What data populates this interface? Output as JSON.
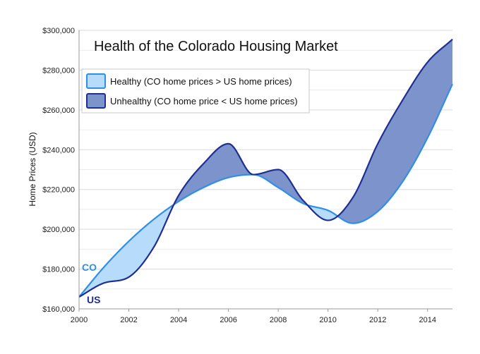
{
  "chart_data": {
    "type": "area",
    "title": "Health of the Colorado Housing Market",
    "xlabel": "",
    "ylabel": "Home Prices (USD)",
    "xlim": [
      2000,
      2015
    ],
    "ylim": [
      160000,
      300000
    ],
    "x_ticks": [
      2000,
      2002,
      2004,
      2006,
      2008,
      2010,
      2012,
      2014
    ],
    "x_tick_labels": [
      "2000",
      "2002",
      "2004",
      "2006",
      "2008",
      "2010",
      "2012",
      "2014"
    ],
    "y_ticks": [
      160000,
      180000,
      200000,
      220000,
      240000,
      260000,
      280000,
      300000
    ],
    "y_tick_labels": [
      "$160,000",
      "$180,000",
      "$200,000",
      "$220,000",
      "$240,000",
      "$260,000",
      "$280,000",
      "$300,000"
    ],
    "grid": "horizontal",
    "x": [
      2000,
      2001,
      2002,
      2003,
      2004,
      2005,
      2006,
      2007,
      2008,
      2009,
      2010,
      2011,
      2012,
      2013,
      2014,
      2015
    ],
    "series": [
      {
        "name": "CO",
        "color": "#2f8fe8",
        "values": [
          166000,
          181000,
          194000,
          205000,
          214000,
          221000,
          226000,
          227500,
          221000,
          213000,
          209500,
          203000,
          209000,
          224000,
          246000,
          273000
        ]
      },
      {
        "name": "US",
        "color": "#1f2f8f",
        "values": [
          166000,
          173000,
          176000,
          191000,
          217000,
          233000,
          243000,
          227500,
          230000,
          214500,
          204500,
          216000,
          243000,
          265000,
          284000,
          295500
        ]
      }
    ],
    "legend": {
      "placement": "top-left",
      "entries": [
        {
          "label": "Healthy (CO home prices > US home prices)",
          "fill": "#b7dcfb",
          "stroke": "#2f8fe8"
        },
        {
          "label": "Unhealthy (CO home price < US home prices)",
          "fill": "#7d93cc",
          "stroke": "#1f2f8f"
        }
      ]
    },
    "colors": {
      "healthy_fill": "#b7dcfb",
      "unhealthy_fill": "#7d93cc",
      "co_line": "#2f8fe8",
      "us_line": "#1f2f8f",
      "grid": "#d9d9d9",
      "axis": "#999999"
    }
  }
}
